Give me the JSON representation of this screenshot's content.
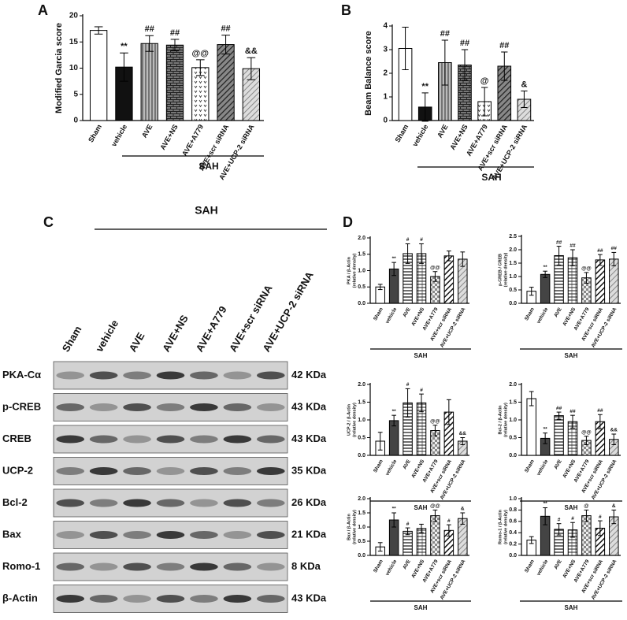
{
  "chart_data": [
    {
      "type": "bar",
      "panel": "A",
      "ylabel": "Modified Garcia score",
      "group_label": "SAH",
      "categories": [
        "Sham",
        "vehicle",
        "AVE",
        "AVE+NS",
        "AVE+A779",
        "AVE+scr siRNA",
        "AVE+UCP-2 siRNA"
      ],
      "values": [
        17.2,
        10.2,
        14.7,
        14.4,
        10.1,
        14.5,
        9.9
      ],
      "errors": [
        0.7,
        2.7,
        1.5,
        1.1,
        1.5,
        1.8,
        2.1
      ],
      "annotations": [
        null,
        "**",
        "##",
        "##",
        "@@",
        "##",
        "&&"
      ],
      "fills": [
        "white",
        "black",
        "vlines",
        "brick",
        "vdots",
        "diag-dark",
        "diag-light"
      ],
      "ylim": [
        0,
        20
      ],
      "yticks": [
        0,
        5,
        10,
        15,
        20
      ]
    },
    {
      "type": "bar",
      "panel": "B",
      "ylabel": "Beam Balance score",
      "group_label": "SAH",
      "categories": [
        "Sham",
        "vehicle",
        "AVE",
        "AVE+NS",
        "AVE+A779",
        "AVE+scr siRNA",
        "AVE+UCP-2 siRNA"
      ],
      "values": [
        3.05,
        0.57,
        2.45,
        2.35,
        0.8,
        2.3,
        0.9
      ],
      "errors": [
        0.9,
        0.6,
        0.95,
        0.65,
        0.6,
        0.6,
        0.35
      ],
      "annotations": [
        null,
        "**",
        "##",
        "##",
        "@",
        "##",
        "&"
      ],
      "fills": [
        "white",
        "black",
        "vlines",
        "brick",
        "vdots",
        "diag-dark",
        "diag-light"
      ],
      "ylim": [
        0,
        4
      ],
      "yticks": [
        0,
        1,
        2,
        3,
        4
      ]
    },
    {
      "type": "bar",
      "panel": "D",
      "ylabel": "PKA / β-Actin",
      "ylabel2": "(relative density)",
      "group_label": "SAH",
      "categories": [
        "Sham",
        "vehicle",
        "AVE",
        "AVE+NS",
        "AVE+A779",
        "AVE+scr siRNA",
        "AVE+UCP-2 siRNA"
      ],
      "values": [
        0.5,
        1.05,
        1.52,
        1.52,
        0.82,
        1.45,
        1.35
      ],
      "errors": [
        0.08,
        0.2,
        0.3,
        0.3,
        0.15,
        0.15,
        0.22
      ],
      "annotations": [
        null,
        "**",
        "#",
        "#",
        "@@",
        null,
        null
      ],
      "fills": [
        "white",
        "gray",
        "hlines",
        "grid",
        "checker",
        "diag-bw",
        "diag-light"
      ],
      "ylim": [
        0,
        2
      ],
      "yticks": [
        {
          "value": 0,
          "label": "0.0"
        },
        {
          "value": 0.5,
          "label": "0.5"
        },
        {
          "value": 1,
          "label": "1.0"
        },
        {
          "value": 1.5,
          "label": "1.5"
        },
        {
          "value": 2,
          "label": "2.0"
        }
      ]
    },
    {
      "type": "bar",
      "ylabel": "p-CREB / CREB",
      "ylabel2": "(relative density)",
      "group_label": "SAH",
      "categories": [
        "Sham",
        "vehicle",
        "AVE",
        "AVE+NS",
        "AVE+A779",
        "AVE+scr siRNA",
        "AVE+UCP-2 siRNA"
      ],
      "values": [
        0.45,
        1.08,
        1.78,
        1.7,
        0.95,
        1.62,
        1.65
      ],
      "errors": [
        0.15,
        0.12,
        0.35,
        0.3,
        0.2,
        0.2,
        0.25
      ],
      "annotations": [
        null,
        "**",
        "##",
        "##",
        "@@",
        "##",
        "##"
      ],
      "fills": [
        "white",
        "gray",
        "hlines",
        "grid",
        "checker",
        "diag-bw",
        "diag-light"
      ],
      "ylim": [
        0,
        2.5
      ],
      "yticks": [
        {
          "value": 0,
          "label": "0.0"
        },
        {
          "value": 0.5,
          "label": "0.5"
        },
        {
          "value": 1,
          "label": "1.0"
        },
        {
          "value": 1.5,
          "label": "1.5"
        },
        {
          "value": 2,
          "label": "2.0"
        },
        {
          "value": 2.5,
          "label": "2.5"
        }
      ]
    },
    {
      "type": "bar",
      "ylabel": "UCP-2 / β-Actin",
      "ylabel2": "(relative density)",
      "group_label": "SAH",
      "categories": [
        "Sham",
        "vehicle",
        "AVE",
        "AVE+NS",
        "AVE+A779",
        "AVE+scr siRNA",
        "AVE+UCP-2 siRNA"
      ],
      "values": [
        0.4,
        0.98,
        1.48,
        1.48,
        0.7,
        1.22,
        0.4
      ],
      "errors": [
        0.25,
        0.15,
        0.4,
        0.25,
        0.15,
        0.35,
        0.1
      ],
      "annotations": [
        null,
        "**",
        "#",
        "#",
        "@@",
        null,
        "&&"
      ],
      "fills": [
        "white",
        "gray",
        "hlines",
        "grid",
        "checker",
        "diag-bw",
        "diag-light"
      ],
      "ylim": [
        0,
        2
      ],
      "yticks": [
        {
          "value": 0,
          "label": "0.0"
        },
        {
          "value": 0.5,
          "label": "0.5"
        },
        {
          "value": 1,
          "label": "1.0"
        },
        {
          "value": 1.5,
          "label": "1.5"
        },
        {
          "value": 2,
          "label": "2.0"
        }
      ]
    },
    {
      "type": "bar",
      "ylabel": "Bcl-2 / β-Actin",
      "ylabel2": "(relative density)",
      "group_label": "SAH",
      "categories": [
        "Sham",
        "vehicle",
        "AVE",
        "AVE+NS",
        "AVE+A779",
        "AVE+scr siRNA",
        "AVE+UCP-2 siRNA"
      ],
      "values": [
        1.6,
        0.48,
        1.12,
        0.95,
        0.42,
        0.95,
        0.45
      ],
      "errors": [
        0.2,
        0.15,
        0.1,
        0.18,
        0.12,
        0.2,
        0.15
      ],
      "annotations": [
        null,
        "**",
        "##",
        "##",
        "@@",
        "##",
        "&&"
      ],
      "fills": [
        "white",
        "gray",
        "hlines",
        "grid",
        "checker",
        "diag-bw",
        "diag-light"
      ],
      "ylim": [
        0,
        2
      ],
      "yticks": [
        {
          "value": 0,
          "label": "0.0"
        },
        {
          "value": 0.5,
          "label": "0.5"
        },
        {
          "value": 1,
          "label": "1.0"
        },
        {
          "value": 1.5,
          "label": "1.5"
        },
        {
          "value": 2,
          "label": "2.0"
        }
      ]
    },
    {
      "type": "bar",
      "ylabel": "Bax / β-Actin",
      "ylabel2": "(relative density)",
      "group_label": "SAH",
      "categories": [
        "Sham",
        "vehicle",
        "AVE",
        "AVE+NS",
        "AVE+A779",
        "AVE+scr siRNA",
        "AVE+UCP-2 siRNA"
      ],
      "values": [
        0.3,
        1.25,
        0.85,
        0.95,
        1.4,
        0.88,
        1.3
      ],
      "errors": [
        0.15,
        0.25,
        0.12,
        0.15,
        0.2,
        0.2,
        0.2
      ],
      "annotations": [
        null,
        "**",
        "#",
        null,
        "@@",
        "#",
        "&"
      ],
      "fills": [
        "white",
        "gray",
        "hlines",
        "grid",
        "checker",
        "diag-bw",
        "diag-light"
      ],
      "ylim": [
        0,
        2
      ],
      "yticks": [
        {
          "value": 0,
          "label": "0.0"
        },
        {
          "value": 0.5,
          "label": "0.5"
        },
        {
          "value": 1,
          "label": "1.0"
        },
        {
          "value": 1.5,
          "label": "1.5"
        },
        {
          "value": 2,
          "label": "2.0"
        }
      ]
    },
    {
      "type": "bar",
      "ylabel": "Romo-1 / β-Actin",
      "ylabel2": "(relative density)",
      "group_label": "SAH",
      "categories": [
        "Sham",
        "vehicle",
        "AVE",
        "AVE+NS",
        "AVE+A779",
        "AVE+scr siRNA",
        "AVE+UCP-2 siRNA"
      ],
      "values": [
        0.27,
        0.69,
        0.46,
        0.45,
        0.7,
        0.48,
        0.68
      ],
      "errors": [
        0.06,
        0.15,
        0.1,
        0.13,
        0.1,
        0.13,
        0.12
      ],
      "annotations": [
        null,
        "**",
        "#",
        "#",
        "@",
        "#",
        "&"
      ],
      "fills": [
        "white",
        "gray",
        "hlines",
        "grid",
        "checker",
        "diag-bw",
        "diag-light"
      ],
      "ylim": [
        0,
        1
      ],
      "yticks": [
        {
          "value": 0,
          "label": "0.0"
        },
        {
          "value": 0.2,
          "label": "0.2"
        },
        {
          "value": 0.4,
          "label": "0.4"
        },
        {
          "value": 0.6,
          "label": "0.6"
        },
        {
          "value": 0.8,
          "label": "0.8"
        },
        {
          "value": 1,
          "label": "1.0"
        }
      ]
    }
  ],
  "blot": {
    "panel": "C",
    "group_label": "SAH",
    "lanes": [
      "Sham",
      "vehicle",
      "AVE",
      "AVE+NS",
      "AVE+A779",
      "AVE+scr siRNA",
      "AVE+UCP-2 siRNA"
    ],
    "rows": [
      {
        "protein": "PKA-Cα",
        "size": "42 KDa"
      },
      {
        "protein": "p-CREB",
        "size": "43 KDa"
      },
      {
        "protein": "CREB",
        "size": "43 KDa"
      },
      {
        "protein": "UCP-2",
        "size": "35 KDa"
      },
      {
        "protein": "Bcl-2",
        "size": "26 KDa"
      },
      {
        "protein": "Bax",
        "size": "21 KDa"
      },
      {
        "protein": "Romo-1",
        "size": "8 KDa"
      },
      {
        "protein": "β-Actin",
        "size": "43 KDa"
      }
    ]
  }
}
